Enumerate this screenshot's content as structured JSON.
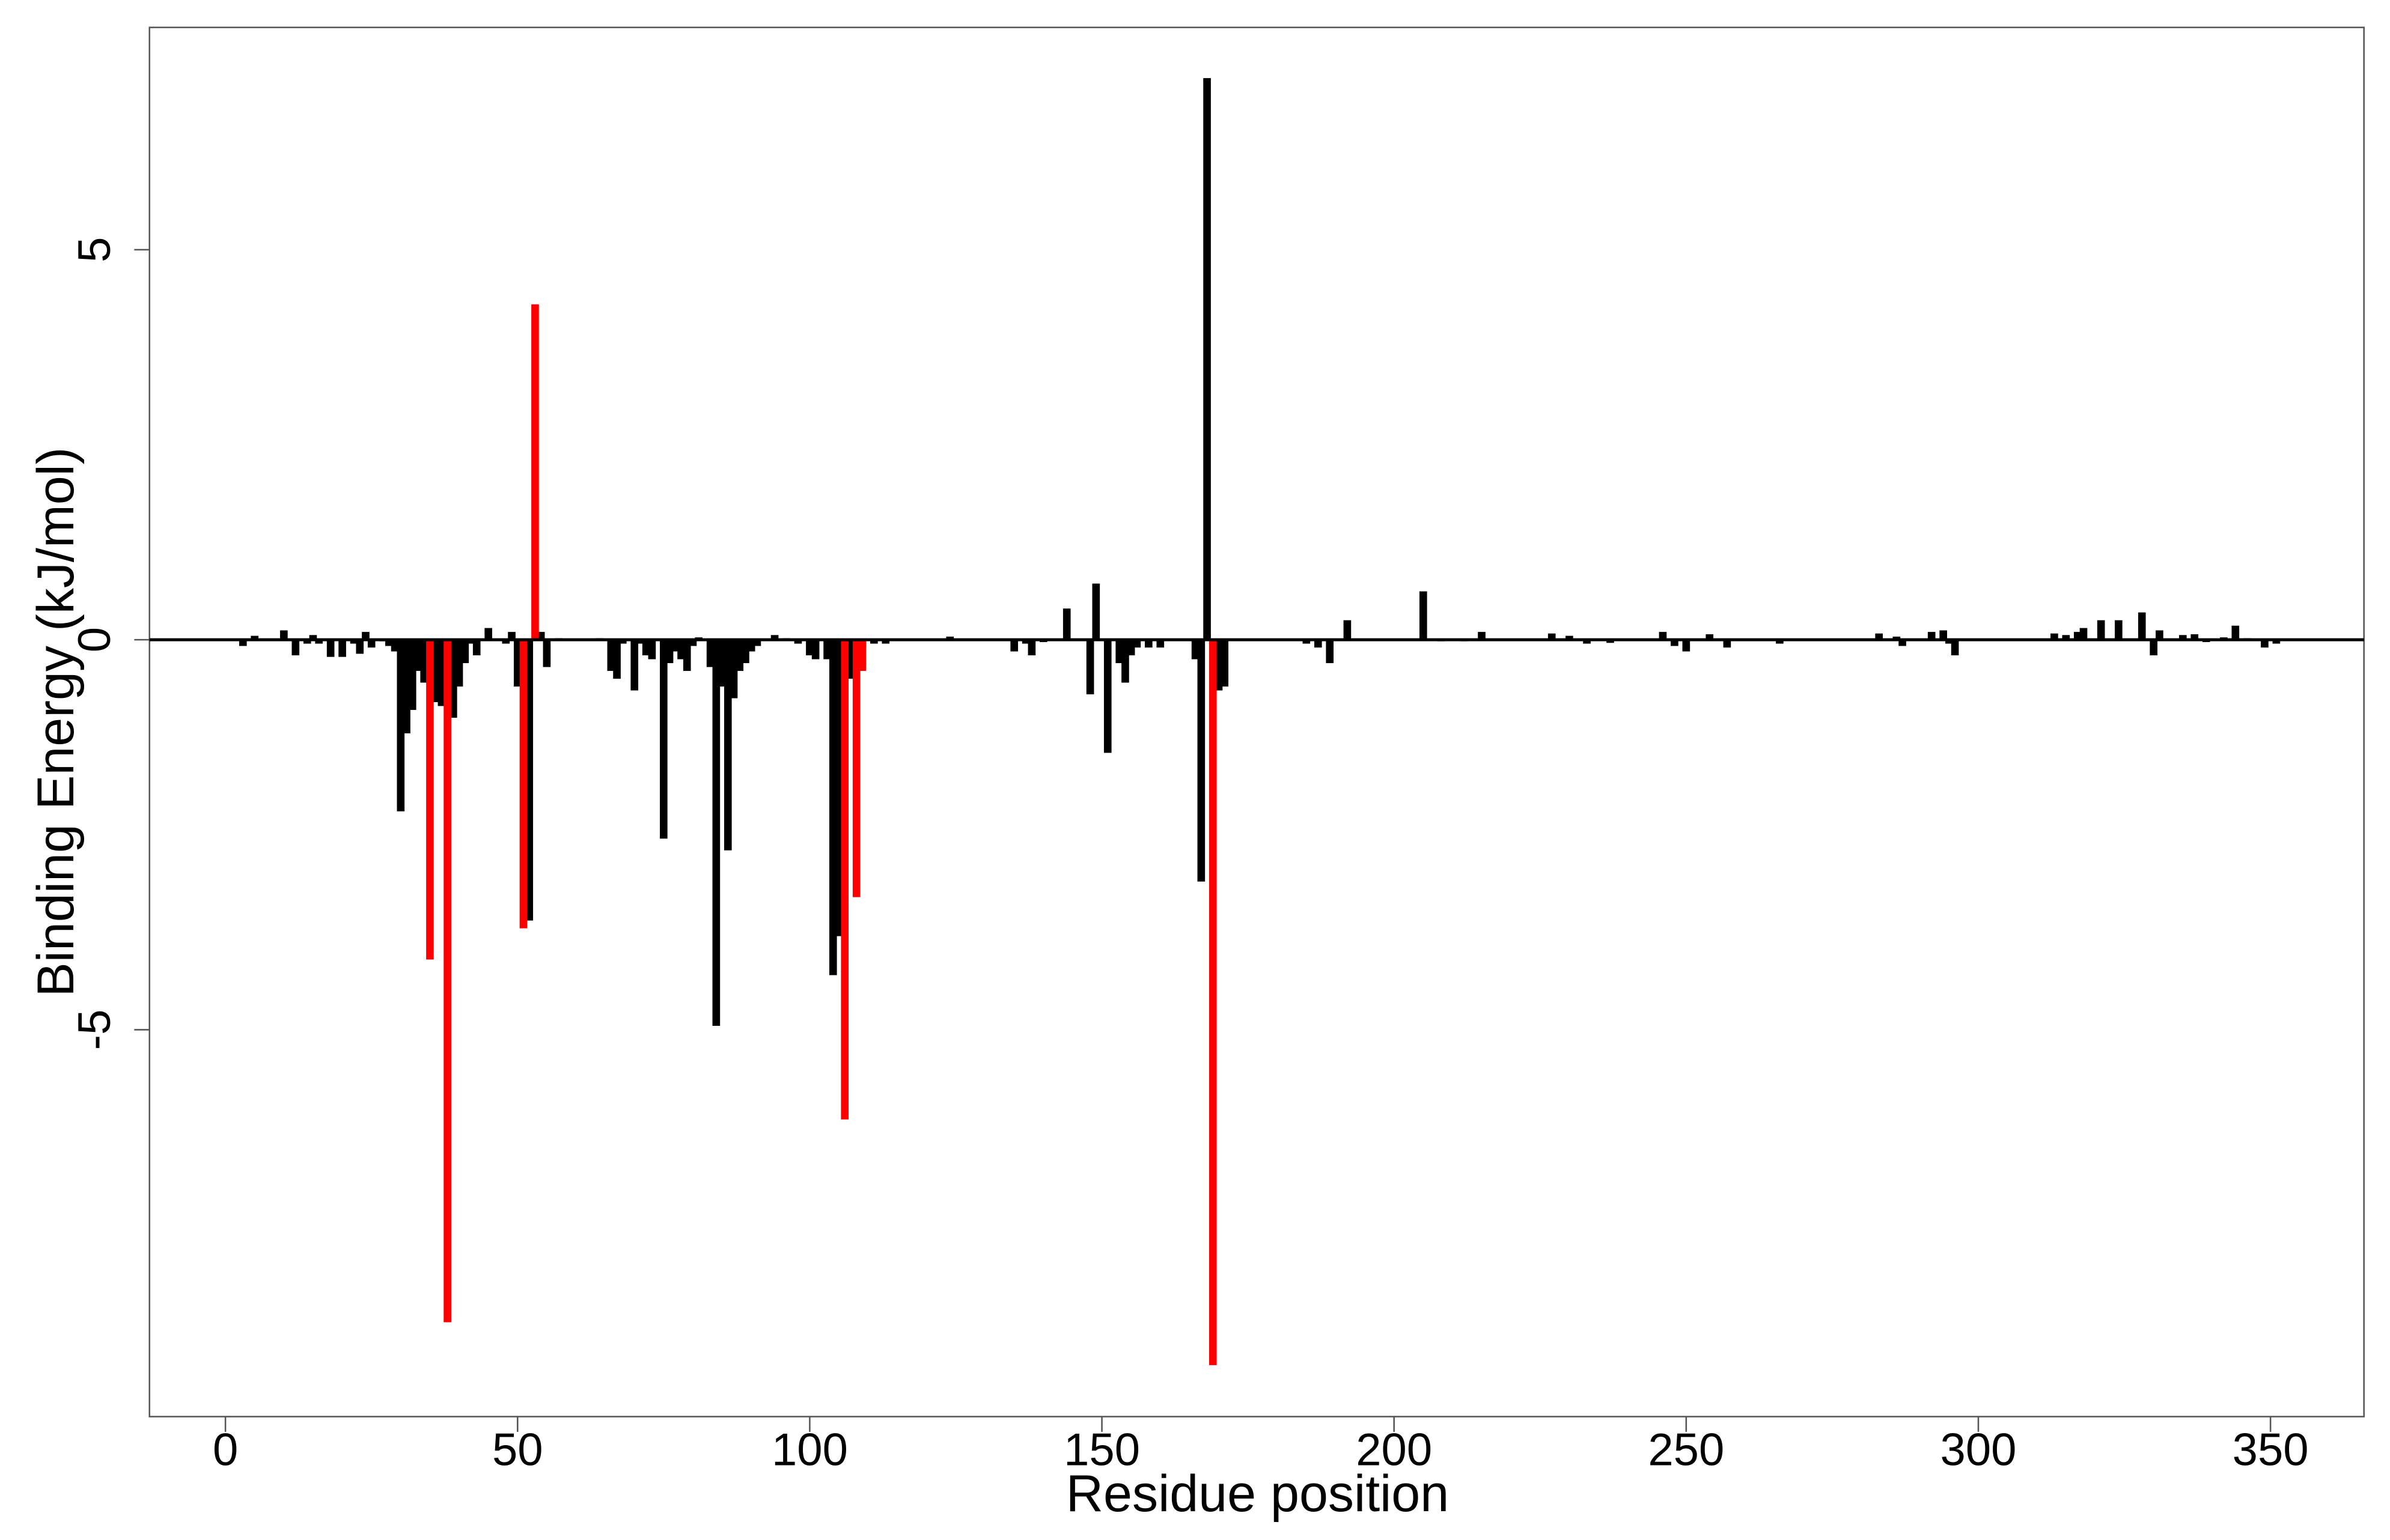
{
  "chart_data": {
    "type": "bar",
    "xlabel": "Residue position",
    "ylabel": "Binding Energy (kJ/mol)",
    "xlim": [
      -13,
      366
    ],
    "ylim": [
      -9.96,
      7.85
    ],
    "xticks": [
      0,
      50,
      100,
      150,
      200,
      250,
      300,
      350
    ],
    "yticks": [
      -5,
      0,
      5
    ],
    "zero_line": true,
    "series": [
      {
        "color": "#000000",
        "x": [
          3,
          5,
          10,
          12,
          14,
          15,
          16,
          18,
          20,
          22,
          23,
          24,
          25,
          27,
          28,
          29,
          30,
          31,
          32,
          33,
          34,
          36,
          37,
          39,
          40,
          41,
          42,
          43,
          45,
          48,
          49,
          50,
          52,
          54,
          55,
          57,
          64,
          66,
          67,
          68,
          70,
          71,
          72,
          73,
          75,
          76,
          77,
          78,
          79,
          80,
          81,
          83,
          84,
          85,
          86,
          87,
          88,
          89,
          90,
          91,
          94,
          96,
          98,
          100,
          101,
          103,
          104,
          105,
          107,
          109,
          111,
          113,
          124,
          135,
          137,
          138,
          140,
          144,
          148,
          149,
          151,
          153,
          154,
          155,
          156,
          158,
          160,
          166,
          167,
          168,
          170,
          171,
          185,
          187,
          189,
          192,
          205,
          208,
          212,
          215,
          227,
          230,
          233,
          237,
          246,
          248,
          250,
          254,
          257,
          266,
          283,
          286,
          287,
          292,
          294,
          295,
          296,
          313,
          315,
          317,
          318,
          321,
          324,
          328,
          330,
          331,
          335,
          337,
          339,
          342,
          344,
          346,
          349,
          351
        ],
        "values": [
          -0.08,
          0.05,
          0.12,
          -0.2,
          -0.05,
          0.06,
          -0.05,
          -0.22,
          -0.22,
          -0.05,
          -0.18,
          0.1,
          -0.1,
          -0.02,
          -0.08,
          -0.15,
          -2.2,
          -1.2,
          -0.9,
          -0.4,
          -0.55,
          -0.8,
          -0.85,
          -1.0,
          -0.6,
          -0.3,
          -0.05,
          -0.2,
          0.15,
          -0.05,
          0.1,
          -0.6,
          -3.6,
          0.1,
          -0.35,
          0.02,
          0.02,
          -0.4,
          -0.5,
          -0.05,
          -0.65,
          -0.05,
          -0.2,
          -0.25,
          -2.55,
          -0.3,
          -0.15,
          -0.25,
          -0.4,
          -0.08,
          0.03,
          -0.35,
          -4.95,
          -0.6,
          -2.7,
          -0.75,
          -0.4,
          -0.3,
          -0.15,
          -0.08,
          0.06,
          0.02,
          -0.05,
          -0.2,
          -0.25,
          -0.25,
          -4.3,
          -3.8,
          -0.5,
          -0.1,
          -0.05,
          -0.05,
          0.04,
          -0.15,
          -0.05,
          -0.2,
          -0.03,
          0.4,
          -0.7,
          0.72,
          -1.45,
          -0.3,
          -0.55,
          -0.2,
          -0.1,
          -0.1,
          -0.1,
          -0.25,
          -3.1,
          7.2,
          -0.65,
          -0.6,
          -0.05,
          -0.1,
          -0.3,
          0.25,
          0.62,
          -0.02,
          -0.02,
          0.1,
          0.08,
          0.05,
          -0.05,
          -0.04,
          0.1,
          -0.08,
          -0.15,
          0.07,
          -0.1,
          -0.05,
          0.08,
          0.04,
          -0.08,
          0.1,
          0.12,
          -0.05,
          -0.2,
          0.08,
          0.06,
          0.1,
          0.15,
          0.25,
          0.25,
          0.35,
          -0.2,
          0.12,
          0.06,
          0.07,
          -0.03,
          0.03,
          0.18,
          0.02,
          -0.1,
          -0.05
        ]
      },
      {
        "color": "#ff0000",
        "x": [
          35,
          38,
          51,
          53,
          106,
          108,
          109,
          169
        ],
        "values": [
          -4.1,
          -8.75,
          -3.7,
          4.3,
          -6.15,
          -3.3,
          -0.4,
          -9.3
        ]
      }
    ]
  }
}
